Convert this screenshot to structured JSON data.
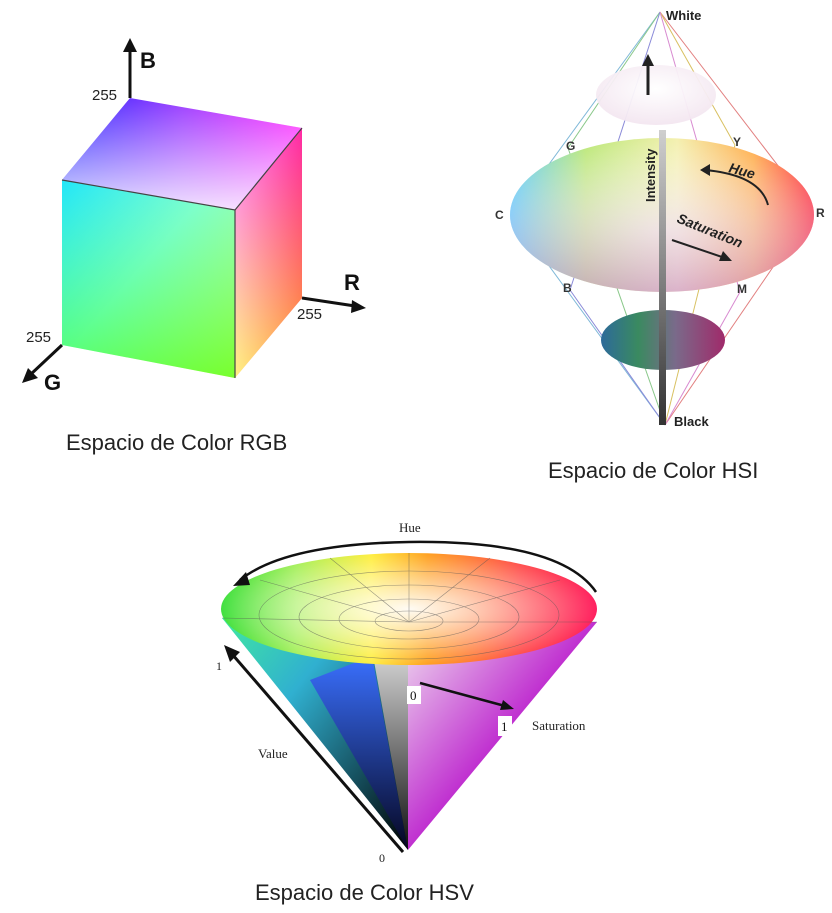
{
  "rgb": {
    "caption": "Espacio de Color RGB",
    "axis_b": "B",
    "axis_r": "R",
    "axis_g": "G",
    "max_b": "255",
    "max_r": "255",
    "max_g": "255"
  },
  "hsi": {
    "caption": "Espacio de Color HSI",
    "white": "White",
    "black": "Black",
    "intensity": "Intensity",
    "hue": "Hue",
    "saturation": "Saturation",
    "g": "G",
    "y": "Y",
    "c": "C",
    "r": "R",
    "b": "B",
    "m": "M"
  },
  "hsv": {
    "caption": "Espacio de Color HSV",
    "hue": "Hue",
    "value": "Value",
    "saturation": "Saturation",
    "value_top": "1",
    "value_bottom": "0",
    "sat_zero": "0",
    "sat_one": "1"
  }
}
